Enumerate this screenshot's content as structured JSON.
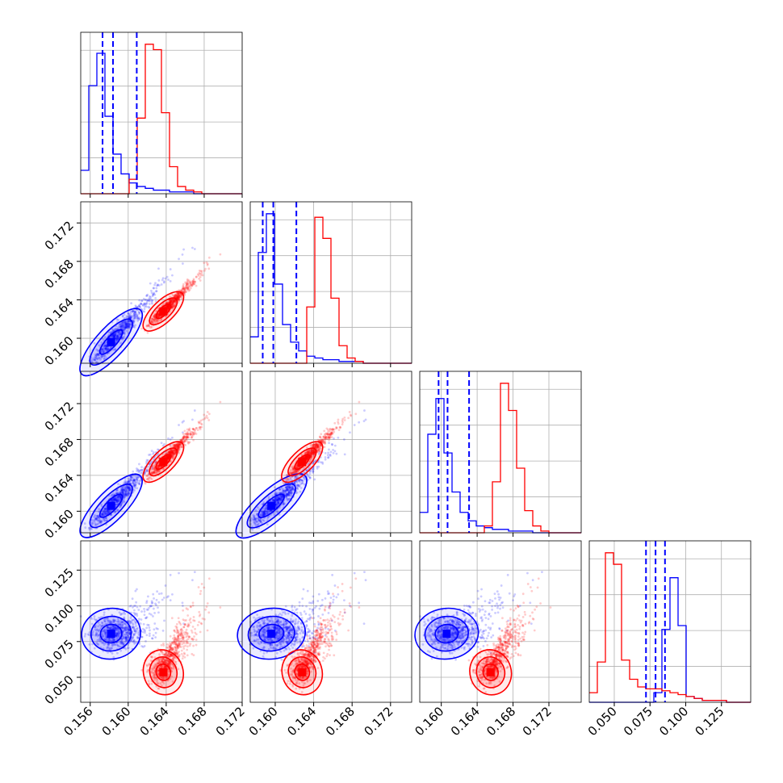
{
  "colors": {
    "series_a": "#0000ff",
    "series_b": "#ff0000",
    "grid": "#b0b0b0",
    "frame": "#000000"
  },
  "chart_data": {
    "type": "corner",
    "grid": true,
    "parameters": 4,
    "axis_ticks": [
      {
        "lim": [
          0.155,
          0.172
        ],
        "ticks": [
          "0.156",
          "0.160",
          "0.164",
          "0.168",
          "0.172"
        ],
        "values": [
          0.156,
          0.16,
          0.164,
          0.168,
          0.172
        ]
      },
      {
        "lim": [
          0.1574,
          0.1742
        ],
        "ticks": [
          "0.160",
          "0.164",
          "0.168",
          "0.172"
        ],
        "values": [
          0.16,
          0.164,
          0.168,
          0.172
        ]
      },
      {
        "lim": [
          0.1576,
          0.1756
        ],
        "ticks": [
          "0.160",
          "0.164",
          "0.168",
          "0.172"
        ],
        "values": [
          0.16,
          0.164,
          0.168,
          0.172
        ]
      },
      {
        "lim": [
          0.0325,
          0.1455
        ],
        "ticks": [
          "0.050",
          "0.075",
          "0.100",
          "0.125"
        ],
        "values": [
          0.05,
          0.075,
          0.1,
          0.125
        ]
      }
    ],
    "series": [
      {
        "id": "blue",
        "color": "#0000ff",
        "means": [
          0.1582,
          0.1596,
          0.1606,
          0.0805
        ],
        "stds": [
          0.0014,
          0.0016,
          0.0016,
          0.006
        ],
        "quantiles": [
          [
            0.1573,
            0.1584,
            0.1609
          ],
          [
            0.1587,
            0.1598,
            0.1622
          ],
          [
            0.1597,
            0.1607,
            0.1631
          ],
          [
            0.0722,
            0.0789,
            0.0855
          ]
        ],
        "hist_counts": [
          [
            13,
            60,
            78,
            43,
            22,
            11,
            6,
            4,
            3,
            2,
            2,
            1,
            1,
            1,
            0,
            0,
            0,
            0,
            0,
            0
          ],
          [
            15,
            63,
            85,
            45,
            22,
            12,
            7,
            4,
            3,
            2,
            2,
            1,
            1,
            1,
            0,
            0,
            0,
            0,
            0,
            0
          ],
          [
            12,
            58,
            79,
            47,
            24,
            12,
            7,
            4,
            3,
            2,
            2,
            1,
            1,
            1,
            0,
            0,
            0,
            0,
            0,
            0
          ],
          [
            0,
            0,
            0,
            0,
            0,
            0,
            0,
            0,
            5,
            38,
            65,
            40,
            3,
            2,
            1,
            1,
            1,
            0,
            0,
            0
          ]
        ]
      },
      {
        "id": "red",
        "color": "#ff0000",
        "means": [
          0.1637,
          0.1628,
          0.1655,
          0.0535
        ],
        "stds": [
          0.0009,
          0.0009,
          0.001,
          0.0055
        ],
        "hist_counts": [
          [
            0,
            0,
            0,
            0,
            0,
            0,
            8,
            42,
            83,
            80,
            45,
            15,
            4,
            2,
            1,
            0,
            0,
            0,
            0,
            0
          ],
          [
            0,
            0,
            0,
            0,
            0,
            0,
            0,
            32,
            83,
            71,
            37,
            10,
            3,
            1,
            0,
            0,
            0,
            0,
            0,
            0
          ],
          [
            0,
            0,
            0,
            0,
            0,
            0,
            0,
            0,
            4,
            30,
            88,
            72,
            38,
            13,
            4,
            1,
            0,
            0,
            0,
            0
          ],
          [
            5,
            21,
            78,
            72,
            22,
            12,
            8,
            7,
            7,
            6,
            5,
            4,
            3,
            2,
            1,
            1,
            1,
            0,
            0,
            0
          ]
        ]
      }
    ]
  }
}
